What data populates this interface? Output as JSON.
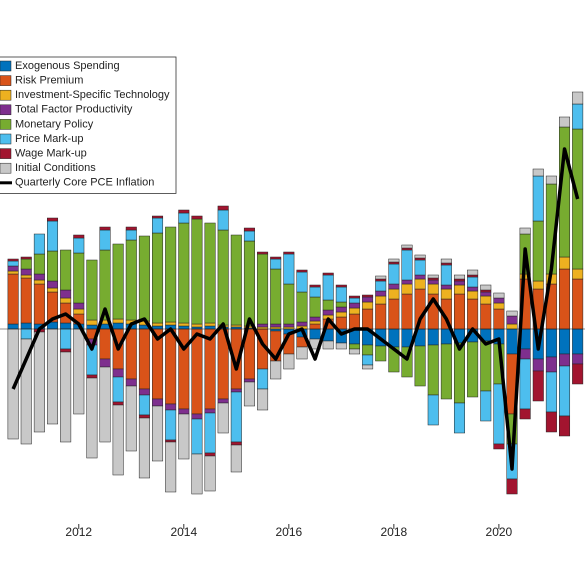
{
  "chart_data": {
    "type": "bar",
    "stacked": true,
    "legend": "northwest",
    "x": [
      2010.75,
      2011,
      2011.25,
      2011.5,
      2011.75,
      2012,
      2012.25,
      2012.5,
      2012.75,
      2013,
      2013.25,
      2013.5,
      2013.75,
      2014,
      2014.25,
      2014.5,
      2014.75,
      2015,
      2015.25,
      2015.5,
      2015.75,
      2016,
      2016.25,
      2016.5,
      2016.75,
      2017,
      2017.25,
      2017.5,
      2017.75,
      2018,
      2018.25,
      2018.5,
      2018.75,
      2019,
      2019.25,
      2019.5,
      2019.75,
      2020,
      2020.25,
      2020.5,
      2020.75,
      2021,
      2021.25,
      2021.5
    ],
    "xlim": [
      2010.5,
      2021.64
    ],
    "xticks": [
      2012,
      2014,
      2016,
      2018,
      2020
    ],
    "ylim": [
      -2,
      3.2
    ],
    "series": [
      {
        "name": "Exogenous Spending",
        "color": "#0072bd",
        "values": [
          0.05,
          0.06,
          0.05,
          0.07,
          0.06,
          0.05,
          0.04,
          0.05,
          0.06,
          0.05,
          0.04,
          0.03,
          0.04,
          0.03,
          0.02,
          0.03,
          0.02,
          0.02,
          0.01,
          0.0,
          -0.02,
          -0.05,
          -0.08,
          -0.1,
          -0.12,
          -0.14,
          -0.15,
          -0.16,
          -0.17,
          -0.18,
          -0.18,
          -0.17,
          -0.16,
          -0.15,
          -0.14,
          -0.13,
          -0.12,
          -0.15,
          -0.25,
          -0.2,
          -0.3,
          -0.28,
          -0.25,
          -0.25
        ]
      },
      {
        "name": "Risk Premium",
        "color": "#d95319",
        "values": [
          0.5,
          0.45,
          0.4,
          0.3,
          0.2,
          0.1,
          -0.1,
          -0.3,
          -0.4,
          -0.5,
          -0.6,
          -0.7,
          -0.75,
          -0.8,
          -0.85,
          -0.8,
          -0.7,
          -0.6,
          -0.5,
          -0.4,
          -0.3,
          -0.2,
          -0.1,
          0.05,
          0.1,
          0.12,
          0.15,
          0.2,
          0.25,
          0.3,
          0.35,
          0.4,
          0.35,
          0.3,
          0.35,
          0.3,
          0.25,
          0.2,
          -0.6,
          0.5,
          0.4,
          0.45,
          0.6,
          0.5
        ]
      },
      {
        "name": "Investment-Specific Technology",
        "color": "#edb120",
        "values": [
          0.03,
          0.03,
          0.04,
          0.04,
          0.05,
          0.05,
          0.05,
          0.04,
          0.04,
          0.04,
          0.04,
          0.03,
          0.03,
          0.03,
          0.03,
          0.03,
          0.02,
          0.02,
          0.02,
          0.02,
          0.02,
          0.02,
          0.03,
          0.03,
          0.04,
          0.05,
          0.06,
          0.07,
          0.08,
          0.1,
          0.1,
          0.1,
          0.1,
          0.1,
          0.09,
          0.08,
          0.08,
          0.06,
          0.05,
          0.05,
          0.08,
          0.1,
          0.12,
          0.1
        ]
      },
      {
        "name": "Total Factor Productivity",
        "color": "#7e2f8e",
        "values": [
          0.05,
          0.06,
          0.06,
          0.07,
          0.08,
          0.06,
          -0.06,
          -0.08,
          -0.08,
          -0.07,
          -0.06,
          -0.07,
          -0.06,
          -0.05,
          -0.05,
          -0.04,
          -0.04,
          -0.03,
          -0.03,
          0.03,
          0.03,
          0.03,
          0.04,
          0.04,
          0.05,
          0.05,
          0.05,
          0.05,
          0.05,
          0.05,
          0.04,
          0.04,
          0.04,
          0.04,
          0.04,
          0.04,
          0.04,
          0.05,
          0.08,
          -0.1,
          -0.12,
          -0.15,
          -0.12,
          -0.1
        ]
      },
      {
        "name": "Monetary Policy",
        "color": "#77ac30",
        "values": [
          0.0,
          0.1,
          0.2,
          0.3,
          0.4,
          0.5,
          0.6,
          0.7,
          0.75,
          0.8,
          0.85,
          0.9,
          0.95,
          1.0,
          1.05,
          1.0,
          0.95,
          0.9,
          0.85,
          0.7,
          0.55,
          0.4,
          0.3,
          0.2,
          0.1,
          0.05,
          -0.05,
          -0.1,
          -0.15,
          -0.25,
          -0.3,
          -0.4,
          -0.5,
          -0.55,
          -0.6,
          -0.55,
          -0.5,
          -0.4,
          -0.3,
          0.4,
          0.6,
          0.9,
          1.3,
          1.4
        ]
      },
      {
        "name": "Price Mark-up",
        "color": "#4dbeee",
        "values": [
          0.05,
          -0.1,
          0.2,
          0.3,
          -0.2,
          0.15,
          -0.3,
          0.2,
          -0.25,
          0.1,
          -0.2,
          0.15,
          -0.3,
          0.1,
          -0.35,
          -0.4,
          0.2,
          -0.5,
          0.1,
          -0.2,
          0.1,
          0.3,
          0.2,
          0.1,
          0.25,
          0.15,
          0.05,
          -0.1,
          0.1,
          0.2,
          0.3,
          0.15,
          -0.3,
          0.2,
          -0.3,
          0.1,
          -0.3,
          -0.6,
          -0.35,
          -0.5,
          0.45,
          -0.4,
          -0.5,
          0.25
        ]
      },
      {
        "name": "Wage Mark-up",
        "color": "#a2142f",
        "values": [
          0.02,
          0.02,
          -0.03,
          0.03,
          -0.03,
          0.03,
          -0.03,
          0.03,
          -0.03,
          0.03,
          -0.03,
          0.02,
          -0.02,
          0.03,
          0.03,
          -0.03,
          0.04,
          -0.03,
          0.03,
          0.02,
          0.02,
          0.02,
          0.02,
          0.02,
          0.02,
          0.02,
          0.02,
          0.02,
          0.02,
          0.02,
          0.02,
          0.02,
          0.02,
          0.02,
          0.02,
          0.02,
          0.02,
          -0.05,
          -0.15,
          -0.1,
          -0.3,
          -0.2,
          -0.2,
          -0.2
        ]
      },
      {
        "name": "Initial Conditions",
        "color": "#c8c8c8",
        "values": [
          -1.1,
          -1.05,
          -1.0,
          -0.95,
          -0.9,
          -0.85,
          -0.8,
          -0.75,
          -0.7,
          -0.65,
          -0.6,
          -0.55,
          -0.5,
          -0.45,
          -0.4,
          -0.35,
          -0.3,
          -0.27,
          -0.24,
          -0.21,
          -0.18,
          -0.15,
          -0.12,
          -0.1,
          -0.08,
          -0.06,
          -0.05,
          -0.04,
          0.03,
          0.03,
          0.03,
          0.03,
          0.03,
          0.04,
          0.04,
          0.05,
          0.05,
          0.05,
          0.05,
          0.06,
          0.07,
          0.08,
          0.1,
          0.12
        ]
      },
      {
        "name": "Quarterly Core PCE Inflation",
        "type": "line",
        "color": "#000000",
        "values": [
          -0.6,
          -0.3,
          0.0,
          0.1,
          0.15,
          0.05,
          -0.2,
          0.2,
          -0.2,
          0.05,
          0.1,
          -0.1,
          0.0,
          -0.2,
          -0.05,
          -0.1,
          0.05,
          -0.4,
          0.1,
          -0.15,
          -0.3,
          -0.05,
          0.0,
          -0.3,
          0.1,
          -0.05,
          0.0,
          0.0,
          -0.1,
          -0.2,
          -0.3,
          0.1,
          0.3,
          0.1,
          -0.2,
          0.0,
          -0.15,
          -0.1,
          -1.4,
          0.8,
          -0.2,
          0.6,
          1.8,
          1.3
        ]
      }
    ]
  }
}
